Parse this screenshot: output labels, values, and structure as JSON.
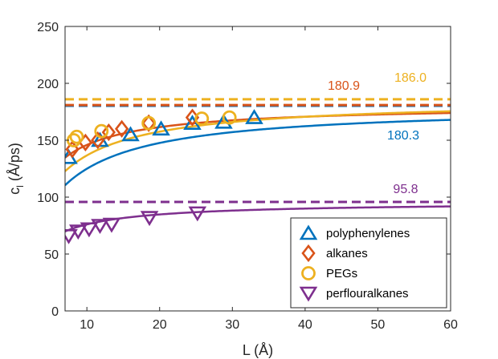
{
  "chart_data": {
    "type": "scatter",
    "xlabel": "L (Å)",
    "ylabel_main": "c",
    "ylabel_sub": "l",
    "ylabel_rest": " (Å/ps)",
    "xlim": [
      7,
      60
    ],
    "ylim": [
      0,
      250
    ],
    "xticks": [
      10,
      20,
      30,
      40,
      50,
      60
    ],
    "yticks": [
      0,
      50,
      100,
      150,
      200,
      250
    ],
    "grid": false,
    "legend_position": "bottom-right",
    "series": [
      {
        "name": "polyphenylenes",
        "marker": "triangle-up",
        "color": "#0072BD",
        "points": [
          [
            7.5,
            135
          ],
          [
            11.8,
            150
          ],
          [
            16.0,
            155
          ],
          [
            20.2,
            160
          ],
          [
            24.5,
            165
          ],
          [
            28.8,
            166
          ],
          [
            33.0,
            170
          ]
        ],
        "fit_asymptote": 180.3,
        "fit_b": 4.43,
        "asymptote_label": "180.3"
      },
      {
        "name": "alkanes",
        "marker": "diamond",
        "color": "#D95319",
        "points": [
          [
            8.0,
            142
          ],
          [
            9.8,
            148
          ],
          [
            11.5,
            150
          ],
          [
            13.0,
            157
          ],
          [
            14.8,
            160
          ],
          [
            18.5,
            165
          ],
          [
            24.5,
            170
          ]
        ],
        "fit_asymptote": 180.9,
        "fit_b": 2.4,
        "asymptote_label": "180.9"
      },
      {
        "name": "PEGs",
        "marker": "circle",
        "color": "#EDB120",
        "points": [
          [
            8.2,
            150
          ],
          [
            8.6,
            153
          ],
          [
            12.0,
            158
          ],
          [
            18.5,
            165
          ],
          [
            25.8,
            169
          ],
          [
            29.6,
            170
          ]
        ],
        "fit_asymptote": 186.0,
        "fit_b": 3.61,
        "asymptote_label": "186.0"
      },
      {
        "name": "perflouralkanes",
        "marker": "triangle-down",
        "color": "#7E2F8E",
        "points": [
          [
            7.5,
            66
          ],
          [
            8.8,
            70
          ],
          [
            10.3,
            72
          ],
          [
            11.8,
            75
          ],
          [
            13.4,
            76
          ],
          [
            18.6,
            82
          ],
          [
            25.2,
            86
          ]
        ],
        "fit_asymptote": 95.8,
        "fit_b": 2.6,
        "asymptote_label": "95.8"
      }
    ]
  }
}
